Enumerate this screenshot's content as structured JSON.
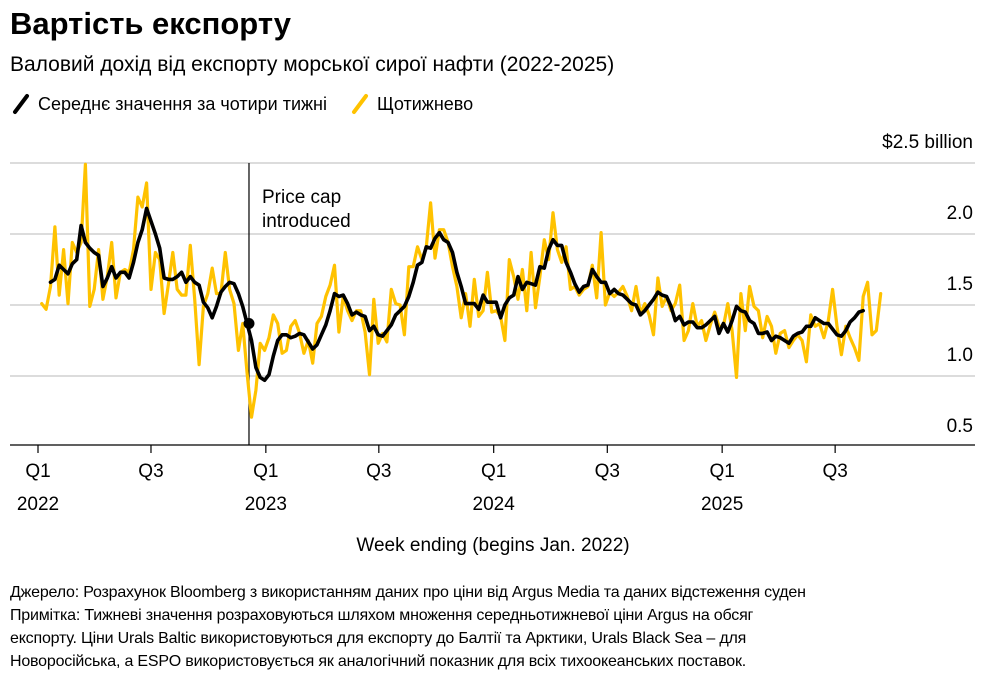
{
  "header": {
    "title": "Вартість експорту",
    "subtitle": "Валовий дохід від експорту морської сирої нафти (2022-2025)"
  },
  "legend": [
    {
      "label": "Середнє значення за чотири тижні",
      "color": "#000000",
      "icon": "slanted-line-icon"
    },
    {
      "label": "Щотижнево",
      "color": "#FFC200",
      "icon": "slanted-line-icon"
    }
  ],
  "footnote": {
    "source": "Джерело: Розрахунок Bloomberg з використанням даних про ціни від Argus Media та даних відстеження суден",
    "note": "Примітка: Тижневі значення розраховуються шляхом множення середньотижневої ціни Argus на обсяг експорту. Ціни Urals Baltic використовуються для експорту до Балтії та Арктики, Urals Black Sea – для Новоросійська, а ESPO використовується як аналогічний показник для всіх тихоокеанських поставок."
  },
  "chart_data": {
    "type": "line",
    "xlabel": "Week ending (begins Jan. 2022)",
    "ylabel": "",
    "yunit_label": "$2.5 billion",
    "ylim": [
      0.5,
      2.5
    ],
    "yticks": [
      {
        "value": 2.5,
        "label": "$2.5 billion"
      },
      {
        "value": 2.0,
        "label": "2.0"
      },
      {
        "value": 1.5,
        "label": "1.5"
      },
      {
        "value": 1.0,
        "label": "1.0"
      },
      {
        "value": 0.5,
        "label": "0.5"
      }
    ],
    "xlim": [
      "2022-01-01",
      "2025-12-31"
    ],
    "xticks": [
      {
        "date": "2022-01-01",
        "label": "Q1",
        "year": "2022"
      },
      {
        "date": "2022-07-01",
        "label": "Q3",
        "year": ""
      },
      {
        "date": "2023-01-01",
        "label": "Q1",
        "year": "2023"
      },
      {
        "date": "2023-07-01",
        "label": "Q3",
        "year": ""
      },
      {
        "date": "2024-01-01",
        "label": "Q1",
        "year": "2024"
      },
      {
        "date": "2024-07-01",
        "label": "Q3",
        "year": ""
      },
      {
        "date": "2025-01-01",
        "label": "Q1",
        "year": "2025"
      },
      {
        "date": "2025-07-01",
        "label": "Q3",
        "year": ""
      }
    ],
    "grid": true,
    "annotation": {
      "label_line1": "Price cap",
      "label_line2": "introduced",
      "date": "2022-12-05",
      "value": 1.37
    },
    "series": [
      {
        "name": "Щотижнево",
        "color": "#FFC200",
        "start": "2022-01-07",
        "step": "week",
        "values": [
          1.51,
          1.47,
          1.63,
          2.05,
          1.57,
          1.89,
          1.51,
          1.94,
          1.87,
          1.94,
          2.49,
          1.49,
          1.61,
          1.89,
          1.54,
          1.7,
          1.94,
          1.55,
          1.73,
          1.75,
          1.73,
          1.89,
          2.26,
          2.19,
          2.36,
          1.61,
          1.87,
          1.82,
          1.44,
          1.65,
          1.87,
          1.61,
          1.57,
          1.57,
          1.92,
          1.54,
          1.08,
          1.49,
          1.58,
          1.76,
          1.58,
          1.58,
          1.87,
          1.61,
          1.51,
          1.18,
          1.37,
          1.02,
          0.71,
          0.9,
          1.23,
          1.18,
          1.27,
          1.43,
          1.37,
          1.16,
          1.18,
          1.35,
          1.39,
          1.3,
          1.16,
          1.25,
          1.09,
          1.37,
          1.42,
          1.56,
          1.64,
          1.78,
          1.31,
          1.56,
          1.46,
          1.39,
          1.46,
          1.46,
          1.31,
          1.01,
          1.54,
          1.23,
          1.3,
          1.24,
          1.61,
          1.51,
          1.5,
          1.29,
          1.77,
          1.77,
          1.91,
          1.82,
          1.91,
          2.22,
          1.83,
          2.03,
          2.03,
          1.94,
          1.77,
          1.63,
          1.41,
          1.58,
          1.35,
          1.68,
          1.42,
          1.46,
          1.73,
          1.45,
          1.46,
          1.42,
          1.25,
          1.82,
          1.7,
          1.54,
          1.75,
          1.46,
          1.87,
          1.48,
          1.7,
          1.96,
          1.82,
          2.15,
          1.89,
          1.8,
          1.91,
          1.61,
          1.63,
          1.57,
          1.61,
          1.63,
          1.78,
          1.55,
          2.01,
          1.5,
          1.59,
          1.56,
          1.59,
          1.63,
          1.56,
          1.46,
          1.63,
          1.44,
          1.51,
          1.43,
          1.29,
          1.69,
          1.49,
          1.56,
          1.46,
          1.51,
          1.64,
          1.25,
          1.32,
          1.51,
          1.35,
          1.39,
          1.25,
          1.36,
          1.45,
          1.35,
          1.35,
          1.51,
          1.32,
          0.99,
          1.58,
          1.32,
          1.63,
          1.49,
          1.46,
          1.27,
          1.42,
          1.35,
          1.16,
          1.3,
          1.32,
          1.2,
          1.25,
          1.29,
          1.25,
          1.1,
          1.43,
          1.35,
          1.37,
          1.27,
          1.39,
          1.61,
          1.35,
          1.15,
          1.35,
          1.27,
          1.2,
          1.11,
          1.56,
          1.66,
          1.29,
          1.32,
          1.58
        ]
      },
      {
        "name": "Середнє значення за чотири тижні",
        "color": "#000000",
        "start": "2022-01-21",
        "step": "week",
        "values": [
          1.66,
          1.68,
          1.78,
          1.75,
          1.72,
          1.79,
          1.82,
          2.06,
          1.94,
          1.9,
          1.87,
          1.85,
          1.63,
          1.69,
          1.77,
          1.69,
          1.73,
          1.73,
          1.69,
          1.8,
          1.94,
          2.03,
          2.18,
          2.09,
          2.0,
          1.9,
          1.69,
          1.68,
          1.68,
          1.7,
          1.73,
          1.66,
          1.7,
          1.66,
          1.64,
          1.52,
          1.48,
          1.41,
          1.49,
          1.59,
          1.63,
          1.66,
          1.65,
          1.58,
          1.49,
          1.37,
          1.25,
          1.06,
          0.99,
          0.97,
          1.01,
          1.14,
          1.25,
          1.29,
          1.29,
          1.27,
          1.28,
          1.3,
          1.29,
          1.24,
          1.19,
          1.22,
          1.29,
          1.36,
          1.46,
          1.58,
          1.56,
          1.57,
          1.51,
          1.43,
          1.45,
          1.43,
          1.42,
          1.32,
          1.35,
          1.29,
          1.28,
          1.32,
          1.36,
          1.43,
          1.46,
          1.49,
          1.56,
          1.66,
          1.78,
          1.8,
          1.91,
          1.9,
          1.97,
          2.01,
          1.96,
          1.94,
          1.87,
          1.73,
          1.63,
          1.51,
          1.51,
          1.51,
          1.47,
          1.57,
          1.52,
          1.52,
          1.52,
          1.41,
          1.5,
          1.55,
          1.57,
          1.7,
          1.61,
          1.66,
          1.65,
          1.64,
          1.77,
          1.76,
          1.89,
          1.96,
          1.92,
          1.92,
          1.8,
          1.73,
          1.65,
          1.59,
          1.63,
          1.64,
          1.75,
          1.7,
          1.66,
          1.66,
          1.58,
          1.61,
          1.58,
          1.57,
          1.54,
          1.51,
          1.5,
          1.43,
          1.46,
          1.5,
          1.54,
          1.59,
          1.57,
          1.56,
          1.49,
          1.39,
          1.42,
          1.36,
          1.38,
          1.38,
          1.34,
          1.34,
          1.36,
          1.39,
          1.42,
          1.3,
          1.37,
          1.31,
          1.39,
          1.49,
          1.46,
          1.45,
          1.39,
          1.37,
          1.3,
          1.3,
          1.31,
          1.25,
          1.28,
          1.27,
          1.25,
          1.23,
          1.28,
          1.3,
          1.31,
          1.35,
          1.35,
          1.41,
          1.39,
          1.37,
          1.37,
          1.33,
          1.29,
          1.28,
          1.32,
          1.38,
          1.41,
          1.45,
          1.46
        ]
      }
    ]
  }
}
